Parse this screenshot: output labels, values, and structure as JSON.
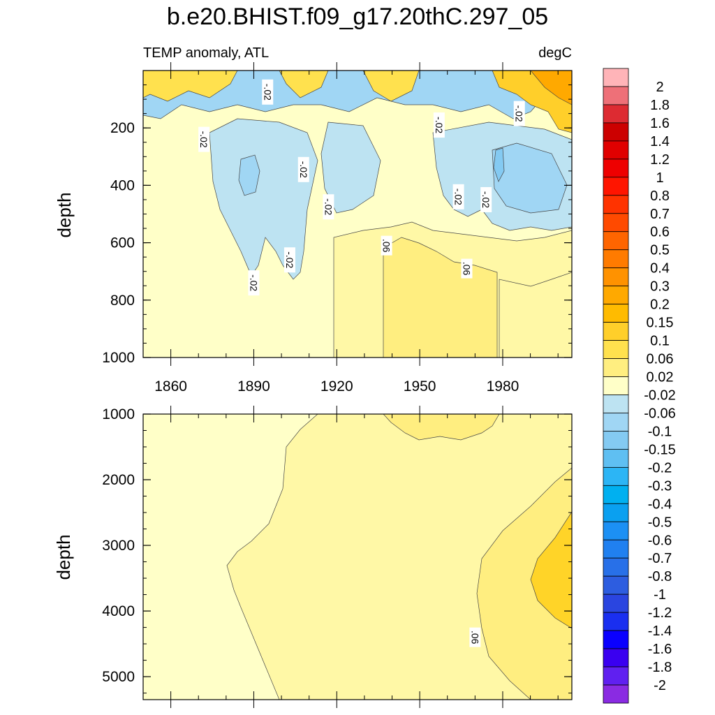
{
  "chart_data": {
    "type": "heatmap",
    "title": "b.e20.BHIST.f09_g17.20thC.297_05",
    "left_label": "TEMP anomaly, ATL",
    "right_label": "degC",
    "ylabel": "depth",
    "x_ticks": [
      "1860",
      "1890",
      "1920",
      "1950",
      "1980"
    ],
    "x_tick_values": [
      1860,
      1890,
      1920,
      1950,
      1980
    ],
    "xlim": [
      1850,
      2005
    ],
    "top_panel": {
      "ylim": [
        0,
        1000
      ],
      "y_ticks": [
        "200",
        "400",
        "600",
        "800",
        "1000"
      ],
      "y_tick_values": [
        200,
        400,
        600,
        800,
        1000
      ],
      "contour_labels": [
        {
          "text": "-.02",
          "x": 1872,
          "y": 240
        },
        {
          "text": "-.02",
          "x": 1895,
          "y": 75
        },
        {
          "text": "-.02",
          "x": 1908,
          "y": 345
        },
        {
          "text": "-.02",
          "x": 1917,
          "y": 475
        },
        {
          "text": "-.02",
          "x": 1890,
          "y": 740
        },
        {
          "text": "-.02",
          "x": 1903,
          "y": 660
        },
        {
          "text": ".06",
          "x": 1938,
          "y": 610
        },
        {
          "text": "-.02",
          "x": 1957,
          "y": 190
        },
        {
          "text": "-.02",
          "x": 1964,
          "y": 440
        },
        {
          "text": ".06",
          "x": 1967,
          "y": 690
        },
        {
          "text": "-.02",
          "x": 1974,
          "y": 450
        },
        {
          "text": "-.02",
          "x": 1986,
          "y": 150
        }
      ]
    },
    "bottom_panel": {
      "ylim": [
        1000,
        5350
      ],
      "y_ticks": [
        "1000",
        "2000",
        "3000",
        "4000",
        "5000"
      ],
      "y_tick_values": [
        1000,
        2000,
        3000,
        4000,
        5000
      ],
      "contour_labels": [
        {
          "text": ".06",
          "x": 1970,
          "y": 4400
        }
      ]
    },
    "colorbar": {
      "labels": [
        "2",
        "1.8",
        "1.6",
        "1.4",
        "1.2",
        "1",
        "0.8",
        "0.7",
        "0.6",
        "0.5",
        "0.4",
        "0.3",
        "0.2",
        "0.15",
        "0.1",
        "0.06",
        "0.02",
        "-0.02",
        "-0.06",
        "-0.1",
        "-0.15",
        "-0.2",
        "-0.3",
        "-0.4",
        "-0.5",
        "-0.6",
        "-0.7",
        "-0.8",
        "-1",
        "-1.2",
        "-1.4",
        "-1.6",
        "-1.8",
        "-2"
      ],
      "colors": [
        "#FFB4B8",
        "#EE7078",
        "#DD2B32",
        "#CC0000",
        "#E00000",
        "#EE0000",
        "#FF1500",
        "#FF3300",
        "#FF4A00",
        "#FF6500",
        "#FF7B00",
        "#FF9200",
        "#FFA900",
        "#FFBB00",
        "#FFCF2A",
        "#FFE14E",
        "#FFEE80",
        "#FFFFC8",
        "#BDE3F2",
        "#A0D6F4",
        "#84CAF2",
        "#5FBFF2",
        "#2CB5F5",
        "#00B0F0",
        "#0AA0F0",
        "#1C90F4",
        "#2080F0",
        "#2870E8",
        "#2D5DE0",
        "#2A45E0",
        "#1A2FF0",
        "#0A00FF",
        "#3A00F0",
        "#6020F0",
        "#8A2BE2"
      ]
    },
    "field_colors": {
      "pale_yellow": "#FFFFC8",
      "light_yellow": "#FFF8A6",
      "yellow": "#FFEE80",
      "gold": "#FFE14E",
      "deep_gold": "#FFD428",
      "light_blue": "#BDE3F2",
      "blue": "#A0D6F4",
      "mid_blue": "#84CAF2",
      "orange": "#FFA900"
    }
  }
}
